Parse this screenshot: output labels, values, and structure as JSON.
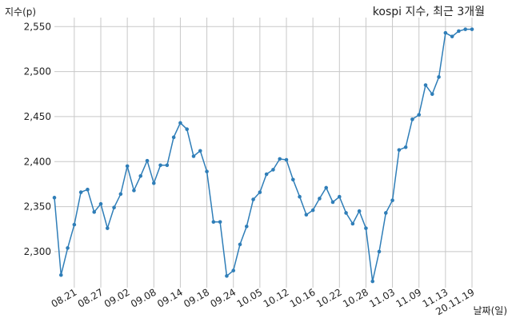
{
  "chart_data": {
    "type": "line",
    "title": "kospi 지수, 최근 3개월",
    "ylabel": "지수(p)",
    "xlabel": "날짜(일)",
    "ylim": [
      2260,
      2560
    ],
    "yticks": [
      2300,
      2350,
      2400,
      2450,
      2500,
      2550
    ],
    "ytick_labels": [
      "2,300",
      "2,350",
      "2,400",
      "2,450",
      "2,500",
      "2,550"
    ],
    "x": [
      "08.18",
      "08.19",
      "08.20",
      "08.21",
      "08.24",
      "08.25",
      "08.26",
      "08.27",
      "08.28",
      "08.31",
      "09.01",
      "09.02",
      "09.03",
      "09.04",
      "09.07",
      "09.08",
      "09.09",
      "09.10",
      "09.11",
      "09.14",
      "09.15",
      "09.16",
      "09.17",
      "09.18",
      "09.21",
      "09.22",
      "09.23",
      "09.24",
      "09.25",
      "09.28",
      "09.29",
      "10.05",
      "10.06",
      "10.07",
      "10.08",
      "10.12",
      "10.13",
      "10.14",
      "10.15",
      "10.16",
      "10.19",
      "10.20",
      "10.21",
      "10.22",
      "10.23",
      "10.26",
      "10.27",
      "10.28",
      "10.29",
      "10.30",
      "11.02",
      "11.03",
      "11.04",
      "11.05",
      "11.06",
      "11.09",
      "11.10",
      "11.11",
      "11.12",
      "11.13",
      "11.16",
      "11.17",
      "11.18",
      "11.19"
    ],
    "series": [
      {
        "values": [
          2360,
          2274,
          2304,
          2330,
          2366,
          2369,
          2344,
          2353,
          2326,
          2349,
          2364,
          2395,
          2368,
          2384,
          2401,
          2376,
          2396,
          2396,
          2427,
          2443,
          2436,
          2406,
          2412,
          2389,
          2333,
          2333,
          2273,
          2279,
          2308,
          2328,
          2358,
          2366,
          2386,
          2391,
          2403,
          2402,
          2380,
          2361,
          2341,
          2346,
          2359,
          2371,
          2355,
          2361,
          2343,
          2331,
          2345,
          2326,
          2267,
          2300,
          2343,
          2357,
          2413,
          2416,
          2447,
          2452,
          2485,
          2475,
          2494,
          2543,
          2539,
          2545,
          2547,
          2547
        ],
        "color": "#2f7eb8"
      }
    ],
    "tick_labels": [
      "08.21",
      "08.27",
      "09.02",
      "09.08",
      "09.14",
      "09.18",
      "09.24",
      "10.05",
      "10.12",
      "10.16",
      "10.22",
      "10.28",
      "11.03",
      "11.09",
      "11.13",
      "20.11.19"
    ],
    "grid": true,
    "legend": "none"
  }
}
